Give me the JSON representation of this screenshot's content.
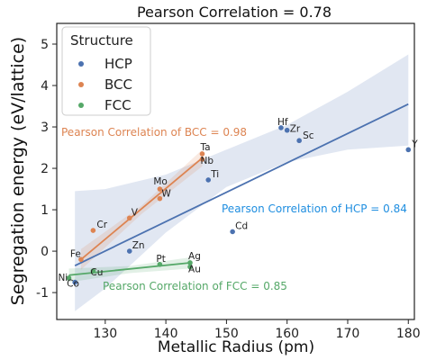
{
  "chart_data": {
    "type": "scatter",
    "title": "Pearson Correlation = 0.78",
    "xlabel": "Metallic Radius (pm)",
    "ylabel": "Segregation energy (eV/lattice)",
    "xlim": [
      122,
      181
    ],
    "ylim": [
      -1.65,
      5.5
    ],
    "xticks": [
      130,
      140,
      150,
      160,
      170,
      180
    ],
    "yticks": [
      -1,
      0,
      1,
      2,
      3,
      4,
      5
    ],
    "grid": false,
    "legend": {
      "title": "Structure",
      "placement": "top-left",
      "entries": [
        "HCP",
        "BCC",
        "FCC"
      ]
    },
    "colors": {
      "HCP": "#4c72b0",
      "BCC": "#dd8452",
      "FCC": "#55a868",
      "hcp_annotation": "#1f8ee0"
    },
    "series": [
      {
        "name": "HCP",
        "points": [
          {
            "label": "Co",
            "x": 125,
            "y": -0.75
          },
          {
            "label": "Zn",
            "x": 134,
            "y": 0.0
          },
          {
            "label": "Ti",
            "x": 147,
            "y": 1.72
          },
          {
            "label": "Cd",
            "x": 151,
            "y": 0.47
          },
          {
            "label": "Hf",
            "x": 159,
            "y": 2.98
          },
          {
            "label": "Zr",
            "x": 160,
            "y": 2.92
          },
          {
            "label": "Sc",
            "x": 162,
            "y": 2.67
          },
          {
            "label": "Y",
            "x": 180,
            "y": 2.45
          }
        ],
        "fit": {
          "x": [
            125,
            180
          ],
          "y": [
            -0.35,
            3.55
          ]
        },
        "band": {
          "x": [
            125,
            130,
            140,
            150,
            160,
            170,
            180
          ],
          "upper": [
            1.45,
            1.5,
            1.85,
            2.45,
            3.05,
            3.85,
            4.75
          ],
          "lower": [
            -1.45,
            -0.9,
            0.45,
            1.55,
            2.15,
            2.45,
            2.55
          ]
        }
      },
      {
        "name": "BCC",
        "points": [
          {
            "label": "Fe",
            "x": 126,
            "y": -0.2
          },
          {
            "label": "Cr",
            "x": 128,
            "y": 0.5
          },
          {
            "label": "V",
            "x": 134,
            "y": 0.8
          },
          {
            "label": "Mo",
            "x": 139,
            "y": 1.5
          },
          {
            "label": "W",
            "x": 139,
            "y": 1.27
          },
          {
            "label": "Ta",
            "x": 146,
            "y": 2.35
          },
          {
            "label": "Nb",
            "x": 146,
            "y": 2.22
          }
        ],
        "fit": {
          "x": [
            126,
            146
          ],
          "y": [
            -0.2,
            2.25
          ]
        },
        "band": {
          "x": [
            126,
            136,
            146
          ],
          "upper": [
            0.05,
            1.1,
            2.45
          ],
          "lower": [
            -0.45,
            0.9,
            2.05
          ]
        }
      },
      {
        "name": "FCC",
        "points": [
          {
            "label": "Ni",
            "x": 124,
            "y": -0.65
          },
          {
            "label": "Cu",
            "x": 128,
            "y": -0.48
          },
          {
            "label": "Pt",
            "x": 139,
            "y": -0.32
          },
          {
            "label": "Ag",
            "x": 144,
            "y": -0.28
          },
          {
            "label": "Au",
            "x": 144,
            "y": -0.38
          }
        ],
        "fit": {
          "x": [
            124,
            144
          ],
          "y": [
            -0.58,
            -0.28
          ]
        },
        "band": {
          "x": [
            124,
            134,
            144
          ],
          "upper": [
            -0.42,
            -0.36,
            -0.15
          ],
          "lower": [
            -0.75,
            -0.53,
            -0.42
          ]
        }
      }
    ],
    "annotations": [
      {
        "text": "Pearson Correlation of BCC = 0.98",
        "series": "BCC"
      },
      {
        "text": "Pearson Correlation of HCP = 0.84",
        "series": "HCP"
      },
      {
        "text": "Pearson Correlation of FCC = 0.85",
        "series": "FCC"
      }
    ]
  }
}
